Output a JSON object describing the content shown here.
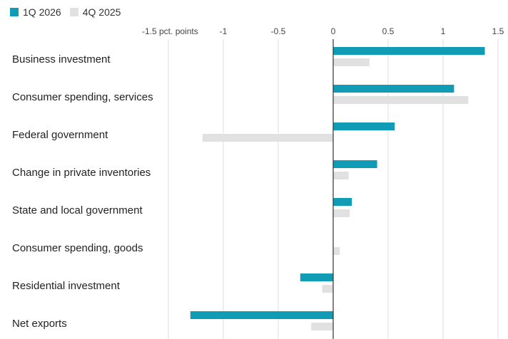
{
  "colors": {
    "series_1q": "#0f9cb4",
    "series_4q": "#e1e1e1",
    "axis": "#333333",
    "grid": "#dcdcdc"
  },
  "chart_data": {
    "type": "bar",
    "orientation": "horizontal",
    "categories": [
      "Business investment",
      "Consumer spending, services",
      "Federal government",
      "Change in private inventories",
      "State and local government",
      "Consumer spending, goods",
      "Residential investment",
      "Net exports"
    ],
    "series": [
      {
        "name": "1Q 2026",
        "values": [
          1.38,
          1.1,
          0.56,
          0.4,
          0.17,
          0.0,
          -0.3,
          -1.3
        ]
      },
      {
        "name": "4Q 2025",
        "values": [
          0.33,
          1.23,
          -1.19,
          0.14,
          0.15,
          0.06,
          -0.1,
          -0.2
        ]
      }
    ],
    "xlim": [
      -1.5,
      1.5
    ],
    "xticks": [
      -1.5,
      -1,
      -0.5,
      0,
      0.5,
      1,
      1.5
    ],
    "xtick_labels": [
      "-1.5 pct. points",
      "-1",
      "-0.5",
      "0",
      "0.5",
      "1",
      "1.5"
    ],
    "grid": true,
    "legend_position": "top-left"
  }
}
